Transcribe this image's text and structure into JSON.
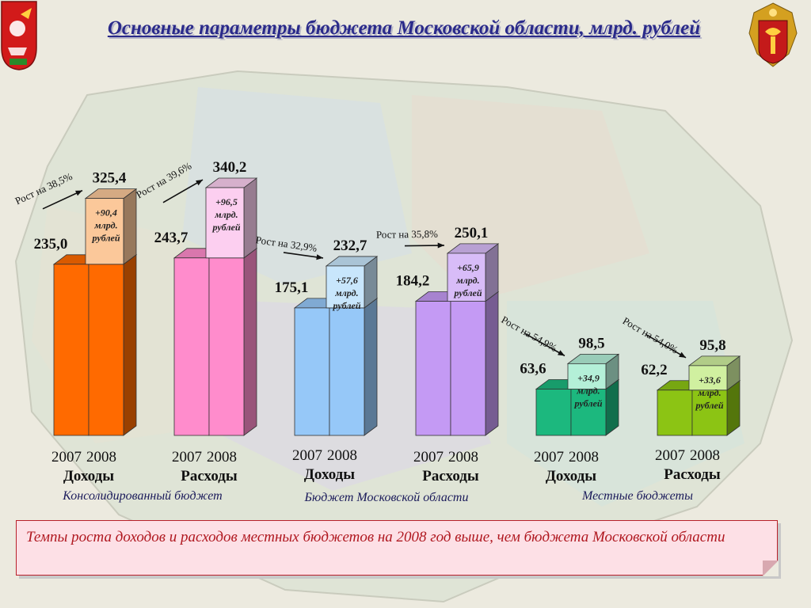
{
  "header": {
    "title": "Основные параметры бюджета Московской области, млрд. рублей"
  },
  "emblems": {
    "left": "moscow-oblast-coat-of-arms-icon",
    "right": "treasury-emblem-icon"
  },
  "colors": {
    "title": "#2a2a8a",
    "note_text": "#b01820",
    "note_bg": "#fde0e6"
  },
  "chart_data": {
    "type": "bar",
    "title": "Основные параметры бюджета Московской области, млрд. рублей",
    "years": [
      "2007",
      "2008"
    ],
    "ylim": [
      0,
      360
    ],
    "grid": false,
    "groups": [
      {
        "name": "Консолидированный бюджет",
        "bars": [
          {
            "category": "Доходы",
            "value_2007": 235.0,
            "value_2008": 325.4,
            "label_2007": "235,0",
            "label_2008": "325,4",
            "increase": "+90,4 млрд. рублей",
            "growth": "Рост на 38,5%",
            "color": "#ff6a00",
            "top_color": "#fbc89a"
          },
          {
            "category": "Расходы",
            "value_2007": 243.7,
            "value_2008": 340.2,
            "label_2007": "243,7",
            "label_2008": "340,2",
            "increase": "+96,5 млрд. рублей",
            "growth": "Рост на 39,6%",
            "color": "#ff8ccc",
            "top_color": "#fccff0"
          }
        ]
      },
      {
        "name": "Бюджет Московской области",
        "bars": [
          {
            "category": "Доходы",
            "value_2007": 175.1,
            "value_2008": 232.7,
            "label_2007": "175,1",
            "label_2008": "232,7",
            "increase": "+57,6 млрд. рублей",
            "growth": "Рост на 32,9%",
            "color": "#96c8f8",
            "top_color": "#c8e6fc"
          },
          {
            "category": "Расходы",
            "value_2007": 184.2,
            "value_2008": 250.1,
            "label_2007": "184,2",
            "label_2008": "250,1",
            "increase": "+65,9 млрд. рублей",
            "growth": "Рост на 35,8%",
            "color": "#c49af4",
            "top_color": "#d8bcf8"
          }
        ]
      },
      {
        "name": "Местные бюджеты",
        "bars": [
          {
            "category": "Доходы",
            "value_2007": 63.6,
            "value_2008": 98.5,
            "label_2007": "63,6",
            "label_2008": "98,5",
            "increase": "+34,9 млрд. рублей",
            "growth": "Рост на 54,9%",
            "color": "#1cb87e",
            "top_color": "#b4f0d8"
          },
          {
            "category": "Расходы",
            "value_2007": 62.2,
            "value_2008": 95.8,
            "label_2007": "62,2",
            "label_2008": "95,8",
            "increase": "+33,6 млрд. рублей",
            "growth": "Рост на 54,0%",
            "color": "#8cc414",
            "top_color": "#d0f0a0"
          }
        ]
      }
    ]
  },
  "note": {
    "text": "Темпы роста доходов и расходов местных бюджетов на 2008 год выше, чем бюджета Московской области"
  }
}
